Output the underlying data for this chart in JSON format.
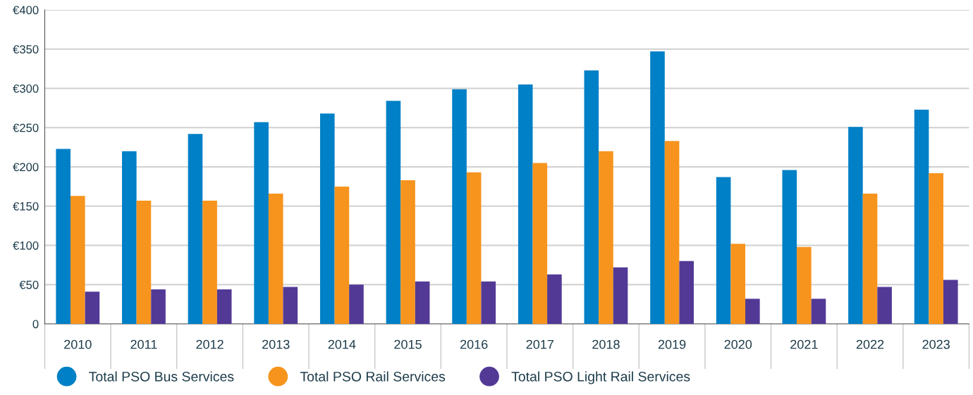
{
  "chart_data": {
    "type": "bar",
    "categories": [
      "2010",
      "2011",
      "2012",
      "2013",
      "2014",
      "2015",
      "2016",
      "2017",
      "2018",
      "2019",
      "2020",
      "2021",
      "2022",
      "2023"
    ],
    "series": [
      {
        "name": "Total PSO Bus Services",
        "color": "#0080c6",
        "values": [
          223,
          220,
          242,
          257,
          268,
          284,
          299,
          305,
          323,
          347,
          187,
          196,
          251,
          273
        ]
      },
      {
        "name": "Total PSO Rail Services",
        "color": "#f7941d",
        "values": [
          163,
          157,
          157,
          166,
          175,
          183,
          193,
          205,
          220,
          233,
          102,
          98,
          166,
          192
        ]
      },
      {
        "name": "Total PSO Light Rail Services",
        "color": "#523996",
        "values": [
          41,
          44,
          44,
          47,
          50,
          54,
          54,
          63,
          72,
          80,
          32,
          32,
          47,
          56
        ]
      }
    ],
    "ylim": [
      0,
      400
    ],
    "yticks": [
      0,
      {
        "value": 50,
        "label": "€50"
      },
      {
        "value": 100,
        "label": "€100"
      },
      {
        "value": 150,
        "label": "€150"
      },
      {
        "value": 200,
        "label": "€200"
      },
      {
        "value": 250,
        "label": "€250"
      },
      {
        "value": 300,
        "label": "€300"
      },
      {
        "value": 350,
        "label": "€350"
      },
      {
        "value": 400,
        "label": "€400"
      }
    ],
    "grid": "y",
    "legend": "bottom"
  }
}
